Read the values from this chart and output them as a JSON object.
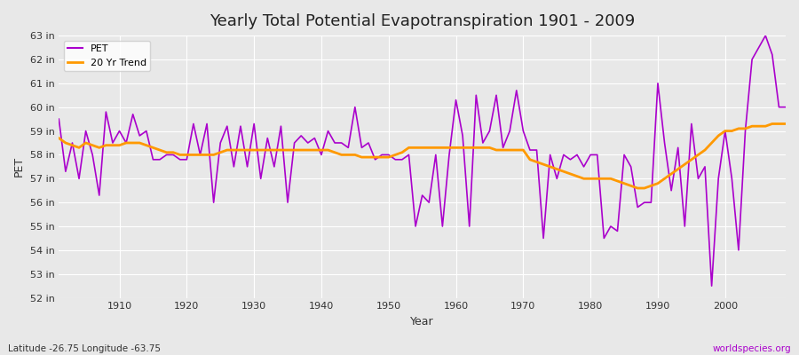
{
  "title": "Yearly Total Potential Evapotranspiration 1901 - 2009",
  "xlabel": "Year",
  "ylabel": "PET",
  "bottom_left_label": "Latitude -26.75 Longitude -63.75",
  "bottom_right_label": "worldspecies.org",
  "pet_color": "#aa00cc",
  "trend_color": "#ff9900",
  "background_color": "#e8e8e8",
  "grid_color": "#ffffff",
  "ylim_min": 52,
  "ylim_max": 63,
  "ytick_labels": [
    "52 in",
    "53 in",
    "54 in",
    "55 in",
    "56 in",
    "57 in",
    "58 in",
    "59 in",
    "60 in",
    "61 in",
    "62 in",
    "63 in"
  ],
  "xtick_values": [
    1910,
    1920,
    1930,
    1940,
    1950,
    1960,
    1970,
    1980,
    1990,
    2000
  ],
  "years": [
    1901,
    1902,
    1903,
    1904,
    1905,
    1906,
    1907,
    1908,
    1909,
    1910,
    1911,
    1912,
    1913,
    1914,
    1915,
    1916,
    1917,
    1918,
    1919,
    1920,
    1921,
    1922,
    1923,
    1924,
    1925,
    1926,
    1927,
    1928,
    1929,
    1930,
    1931,
    1932,
    1933,
    1934,
    1935,
    1936,
    1937,
    1938,
    1939,
    1940,
    1941,
    1942,
    1943,
    1944,
    1945,
    1946,
    1947,
    1948,
    1949,
    1950,
    1951,
    1952,
    1953,
    1954,
    1955,
    1956,
    1957,
    1958,
    1959,
    1960,
    1961,
    1962,
    1963,
    1964,
    1965,
    1966,
    1967,
    1968,
    1969,
    1970,
    1971,
    1972,
    1973,
    1974,
    1975,
    1976,
    1977,
    1978,
    1979,
    1980,
    1981,
    1982,
    1983,
    1984,
    1985,
    1986,
    1987,
    1988,
    1989,
    1990,
    1991,
    1992,
    1993,
    1994,
    1995,
    1996,
    1997,
    1998,
    1999,
    2000,
    2001,
    2002,
    2003,
    2004,
    2005,
    2006,
    2007,
    2008,
    2009
  ],
  "pet_values": [
    59.5,
    57.3,
    58.5,
    57.0,
    59.0,
    58.0,
    56.3,
    59.8,
    58.5,
    59.0,
    58.5,
    59.7,
    58.8,
    59.0,
    57.8,
    57.8,
    58.0,
    58.0,
    57.8,
    57.8,
    59.3,
    58.0,
    59.3,
    56.0,
    58.5,
    59.2,
    57.5,
    59.2,
    57.5,
    59.3,
    57.0,
    58.7,
    57.5,
    59.2,
    56.0,
    58.5,
    58.8,
    58.5,
    58.7,
    58.0,
    59.0,
    58.5,
    58.5,
    58.3,
    60.0,
    58.3,
    58.5,
    57.8,
    58.0,
    58.0,
    57.8,
    57.8,
    58.0,
    55.0,
    56.3,
    56.0,
    58.0,
    55.0,
    58.0,
    60.3,
    58.8,
    55.0,
    60.5,
    58.5,
    59.0,
    60.5,
    58.3,
    59.0,
    60.7,
    59.0,
    58.2,
    58.2,
    54.5,
    58.0,
    57.0,
    58.0,
    57.8,
    58.0,
    57.5,
    58.0,
    58.0,
    54.5,
    55.0,
    54.8,
    58.0,
    57.5,
    55.8,
    56.0,
    56.0,
    61.0,
    58.5,
    56.5,
    58.3,
    55.0,
    59.3,
    57.0,
    57.5,
    52.5,
    57.0,
    59.0,
    57.0,
    54.0,
    59.0,
    62.0,
    62.5,
    63.0,
    62.2,
    60.0,
    60.0
  ],
  "trend_values": [
    58.7,
    58.5,
    58.4,
    58.3,
    58.5,
    58.4,
    58.3,
    58.4,
    58.4,
    58.4,
    58.5,
    58.5,
    58.5,
    58.4,
    58.3,
    58.2,
    58.1,
    58.1,
    58.0,
    58.0,
    58.0,
    58.0,
    58.0,
    58.0,
    58.1,
    58.2,
    58.2,
    58.2,
    58.2,
    58.2,
    58.2,
    58.2,
    58.2,
    58.2,
    58.2,
    58.2,
    58.2,
    58.2,
    58.2,
    58.2,
    58.2,
    58.1,
    58.0,
    58.0,
    58.0,
    57.9,
    57.9,
    57.9,
    57.9,
    57.9,
    58.0,
    58.1,
    58.3,
    58.3,
    58.3,
    58.3,
    58.3,
    58.3,
    58.3,
    58.3,
    58.3,
    58.3,
    58.3,
    58.3,
    58.3,
    58.2,
    58.2,
    58.2,
    58.2,
    58.2,
    57.8,
    57.7,
    57.6,
    57.5,
    57.4,
    57.3,
    57.2,
    57.1,
    57.0,
    57.0,
    57.0,
    57.0,
    57.0,
    56.9,
    56.8,
    56.7,
    56.6,
    56.6,
    56.7,
    56.8,
    57.0,
    57.2,
    57.4,
    57.6,
    57.8,
    58.0,
    58.2,
    58.5,
    58.8,
    59.0,
    59.0,
    59.1,
    59.1,
    59.2,
    59.2,
    59.2,
    59.3,
    59.3,
    59.3
  ]
}
